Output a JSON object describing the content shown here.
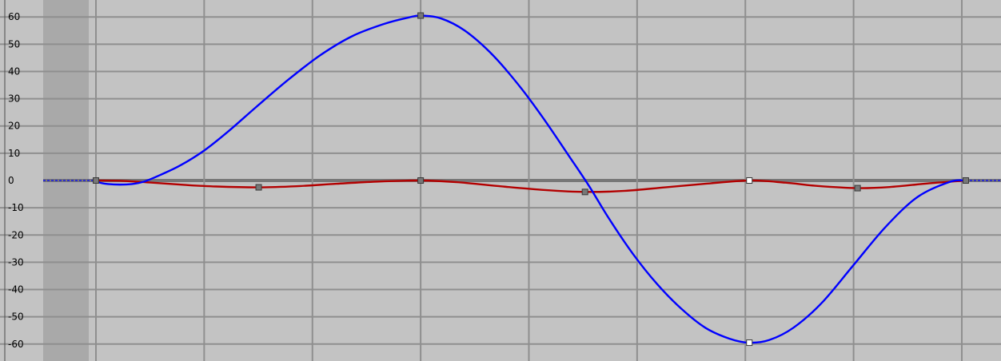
{
  "chart_data": {
    "type": "line",
    "title": "",
    "xlabel": "",
    "ylabel": "",
    "ylim": [
      -65,
      65
    ],
    "xlim": [
      0,
      1050
    ],
    "y_ticks": [
      60,
      50,
      40,
      30,
      20,
      10,
      0,
      -10,
      -20,
      -30,
      -40,
      -50,
      -60
    ],
    "y_tick_labels": [
      "60",
      "50",
      "40",
      "30",
      "20",
      "10",
      "0",
      "-10",
      "-20",
      "-30",
      "-40",
      "-50",
      "-60"
    ],
    "x_gridlines": [
      0,
      135,
      270,
      405,
      540,
      675,
      810,
      945,
      1080
    ],
    "grid": true,
    "series": [
      {
        "color": "#0000ff",
        "points": [
          [
            0,
            0
          ],
          [
            5,
            -0.8
          ],
          [
            15,
            -1.3
          ],
          [
            30,
            -1.5
          ],
          [
            45,
            -1.3
          ],
          [
            60,
            -0.4
          ],
          [
            80,
            2
          ],
          [
            105,
            5.5
          ],
          [
            135,
            11
          ],
          [
            165,
            18
          ],
          [
            200,
            27
          ],
          [
            240,
            37
          ],
          [
            280,
            46
          ],
          [
            320,
            53
          ],
          [
            360,
            57.5
          ],
          [
            390,
            59.8
          ],
          [
            405,
            60.5
          ],
          [
            430,
            59.5
          ],
          [
            460,
            55
          ],
          [
            495,
            46
          ],
          [
            530,
            34
          ],
          [
            560,
            22
          ],
          [
            590,
            9
          ],
          [
            615,
            -2
          ],
          [
            640,
            -14
          ],
          [
            670,
            -27
          ],
          [
            700,
            -38
          ],
          [
            730,
            -47
          ],
          [
            760,
            -54
          ],
          [
            790,
            -58
          ],
          [
            815,
            -59.5
          ],
          [
            840,
            -58.5
          ],
          [
            870,
            -54
          ],
          [
            905,
            -45
          ],
          [
            945,
            -31
          ],
          [
            985,
            -17
          ],
          [
            1025,
            -6
          ],
          [
            1065,
            -0.5
          ],
          [
            1085,
            0
          ]
        ],
        "keys": [
          [
            0,
            0
          ],
          [
            405,
            60.5
          ],
          [
            815,
            -59.5
          ],
          [
            1085,
            0
          ]
        ],
        "selected_key": [
          815,
          -59.5
        ]
      },
      {
        "color": "#b30000",
        "points": [
          [
            0,
            0
          ],
          [
            30,
            -0.1
          ],
          [
            70,
            -0.8
          ],
          [
            110,
            -1.6
          ],
          [
            150,
            -2.2
          ],
          [
            203,
            -2.5
          ],
          [
            250,
            -2.1
          ],
          [
            300,
            -1.2
          ],
          [
            350,
            -0.4
          ],
          [
            405,
            0
          ],
          [
            450,
            -0.6
          ],
          [
            500,
            -2
          ],
          [
            560,
            -3.5
          ],
          [
            610,
            -4.2
          ],
          [
            660,
            -3.8
          ],
          [
            710,
            -2.5
          ],
          [
            760,
            -1.2
          ],
          [
            815,
            0
          ],
          [
            860,
            -0.8
          ],
          [
            900,
            -2
          ],
          [
            950,
            -2.8
          ],
          [
            990,
            -2.4
          ],
          [
            1040,
            -1
          ],
          [
            1085,
            0
          ]
        ],
        "keys": [
          [
            0,
            0
          ],
          [
            203,
            -2.5
          ],
          [
            405,
            0
          ],
          [
            610,
            -4.2
          ],
          [
            815,
            0
          ],
          [
            950,
            -2.8
          ],
          [
            1085,
            0
          ]
        ],
        "selected_key": [
          815,
          0
        ]
      }
    ]
  },
  "colors": {
    "background": "#c3c3c3",
    "gutter": "#a9a9a9",
    "grid_line": "#8f8f8f",
    "zero_line": "#777777",
    "axis_line": "#4a4a4a",
    "key_fill": "#777777",
    "key_stroke": "#3a3a3a",
    "selected_key_fill": "#ffffff",
    "tangent_dashes": "#0000ff"
  }
}
